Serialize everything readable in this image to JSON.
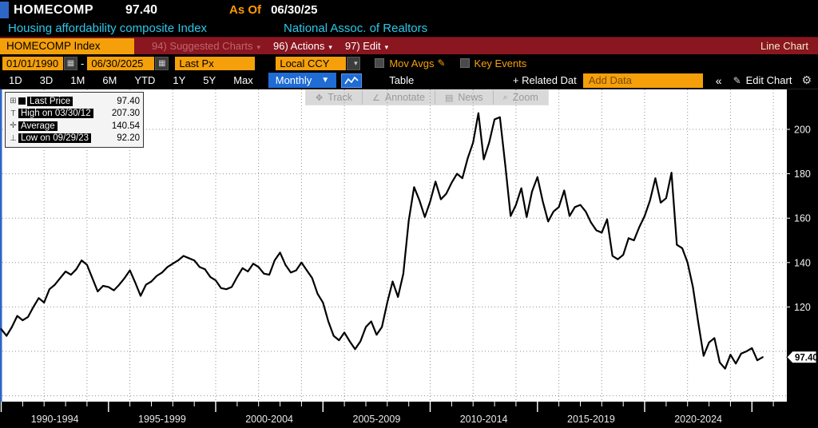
{
  "header": {
    "ticker": "HOMECOMP",
    "last_price": "97.40",
    "as_of_label": "As Of",
    "as_of_date": "06/30/25",
    "description": "Housing affordability composite Index",
    "source": "National Assoc. of Realtors"
  },
  "menubar": {
    "ticker_button": "HOMECOMP Index",
    "suggested_charts": "94) Suggested Charts",
    "actions": "96) Actions",
    "edit": "97) Edit",
    "right_label": "Line Chart"
  },
  "controls": {
    "date_from": "01/01/1990",
    "date_to": "06/30/2025",
    "price_field": "Last Px",
    "currency_field": "Local CCY",
    "mov_avgs_label": "Mov Avgs",
    "key_events_label": "Key Events"
  },
  "tabbar": {
    "ranges": [
      "1D",
      "3D",
      "1M",
      "6M",
      "YTD",
      "1Y",
      "5Y",
      "Max"
    ],
    "frequency": "Monthly",
    "table_label": "Table",
    "related_label": "+ Related Dat",
    "add_data_placeholder": "Add Data",
    "collapse_label": "«",
    "edit_chart_label": "Edit Chart"
  },
  "chart_toolbar": {
    "buttons": [
      "Track",
      "Annotate",
      "News",
      "Zoom"
    ]
  },
  "legend": {
    "rows": [
      {
        "marker": "line-swatch",
        "label": "Last Price",
        "value": "97.40"
      },
      {
        "marker": "high",
        "label": "High on 03/30/12",
        "value": "207.30"
      },
      {
        "marker": "average",
        "label": "Average",
        "value": "140.54"
      },
      {
        "marker": "low",
        "label": "Low on 09/29/23",
        "value": "92.20"
      }
    ]
  },
  "price_tag": "97.40",
  "colors": {
    "accent_orange": "#f5a00a",
    "menubar_red": "#8a1620",
    "selection_blue": "#1f6cd5",
    "panel_blue": "#2e66c8",
    "description_cyan": "#2cc8e8",
    "asof_orange": "#ff9a00",
    "line_color": "#000000",
    "plot_bg": "#ffffff",
    "grid_gray": "#999999"
  },
  "chart_data": {
    "type": "line",
    "title": "HOMECOMP Index - Housing affordability composite Index",
    "series_name": "Last Price",
    "x_unit": "decimal year, quarterly samples of monthly series",
    "x_start": 1990.0,
    "x_step": 0.25,
    "x_end": 2025.5,
    "values": [
      110,
      107,
      111,
      116,
      114,
      115.5,
      120,
      124,
      122,
      128,
      130,
      133,
      136,
      134.5,
      137,
      141,
      139,
      133,
      127,
      129.5,
      129,
      127.5,
      130,
      133,
      136.5,
      131,
      125,
      130,
      131.5,
      134,
      135.5,
      138,
      139.5,
      141,
      143,
      142,
      141,
      138,
      137,
      133.5,
      132,
      128.5,
      128,
      129,
      133.5,
      137.5,
      136,
      139.5,
      138,
      135,
      134.5,
      141,
      144.5,
      139,
      135.5,
      136.5,
      140,
      136.5,
      133,
      126,
      122,
      113.5,
      107,
      105,
      108.5,
      104.5,
      101,
      104.5,
      111,
      113.5,
      107.5,
      111,
      122,
      131.5,
      124.5,
      135,
      159,
      174,
      168,
      160.5,
      167.5,
      176.5,
      168.5,
      171,
      176,
      180,
      178,
      187,
      194,
      207.3,
      186.5,
      194,
      204.5,
      205.5,
      184,
      161,
      166,
      173.5,
      160.5,
      172,
      178.5,
      167.5,
      158.5,
      163,
      165,
      172.5,
      161,
      165,
      166,
      163,
      158,
      154.5,
      153.5,
      159.5,
      143,
      141.5,
      143.5,
      151,
      150,
      156,
      161,
      168,
      178,
      167,
      169,
      180.5,
      148,
      146.5,
      140,
      129,
      113,
      98,
      104,
      106,
      95,
      92.2,
      98.5,
      94.5,
      99,
      100,
      101.5,
      96,
      97.4
    ],
    "ylim": [
      77,
      218
    ],
    "yticks": [
      100,
      120,
      140,
      160,
      180,
      200
    ],
    "ytick_labels_visible": [
      "120",
      "140",
      "160",
      "180",
      "200"
    ],
    "xlim": [
      1990,
      2026.6
    ],
    "x_group_labels": [
      "1990-1994",
      "1995-1999",
      "2000-2004",
      "2005-2009",
      "2010-2014",
      "2015-2019",
      "2020-2024"
    ],
    "grid": "dotted",
    "legend_position": "top-left",
    "stats": {
      "last": 97.4,
      "high": 207.3,
      "high_date": "03/30/12",
      "average": 140.54,
      "low": 92.2,
      "low_date": "09/29/23"
    }
  }
}
